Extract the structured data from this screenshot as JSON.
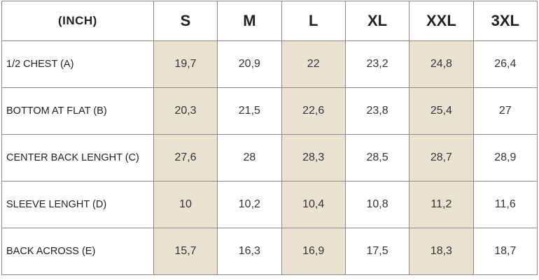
{
  "table": {
    "unit_label": "(INCH)",
    "sizes": [
      "S",
      "M",
      "L",
      "XL",
      "XXL",
      "3XL"
    ],
    "shade_color": "#ebe1d1",
    "rows": [
      {
        "label": "1/2 CHEST (A)",
        "values": [
          "19,7",
          "20,9",
          "22",
          "23,2",
          "24,8",
          "26,4"
        ]
      },
      {
        "label": "BOTTOM AT FLAT (B)",
        "values": [
          "20,3",
          "21,5",
          "22,6",
          "23,8",
          "25,4",
          "27"
        ]
      },
      {
        "label": "CENTER BACK LENGHT (C)",
        "values": [
          "27,6",
          "28",
          "28,3",
          "28,5",
          "28,7",
          "28,9"
        ]
      },
      {
        "label": "SLEEVE LENGHT (D)",
        "values": [
          "10",
          "10,2",
          "10,4",
          "10,8",
          "11,2",
          "11,6"
        ]
      },
      {
        "label": "BACK ACROSS (E)",
        "values": [
          "15,7",
          "16,3",
          "16,9",
          "17,5",
          "18,3",
          "18,7"
        ]
      }
    ]
  }
}
